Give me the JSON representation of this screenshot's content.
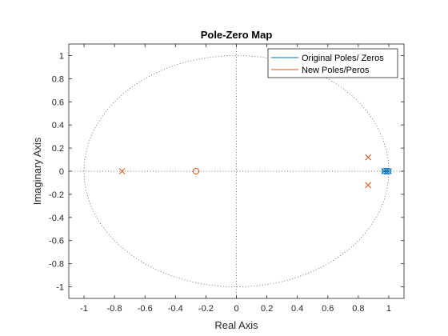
{
  "chart_data": {
    "type": "scatter",
    "title": "Pole-Zero Map",
    "xlabel": "Real Axis",
    "ylabel": "Imaginary Axis",
    "xlim": [
      -1.1,
      1.1
    ],
    "ylim": [
      -1.1,
      1.1
    ],
    "xticks": [
      -1,
      -0.8,
      -0.6,
      -0.4,
      -0.2,
      0,
      0.2,
      0.4,
      0.6,
      0.8,
      1
    ],
    "yticks": [
      -1,
      -0.8,
      -0.6,
      -0.4,
      -0.2,
      0,
      0.2,
      0.4,
      0.6,
      0.8,
      1
    ],
    "xtick_labels": [
      "-1",
      "-0.8",
      "-0.6",
      "-0.4",
      "-0.2",
      "0",
      "0.2",
      "0.4",
      "0.6",
      "0.8",
      "1"
    ],
    "ytick_labels": [
      "-1",
      "-0.8",
      "-0.6",
      "-0.4",
      "-0.2",
      "0",
      "0.2",
      "0.4",
      "0.6",
      "0.8",
      "1"
    ],
    "unit_circle": true,
    "grid": false,
    "legend_position": "top-right",
    "series": [
      {
        "name": "Original Poles/ Zeros",
        "color": "#0072BD",
        "poles": [
          [
            0.97,
            0
          ],
          [
            0.985,
            0
          ],
          [
            1.0,
            0
          ]
        ],
        "zeros": [
          [
            0.975,
            0
          ],
          [
            0.995,
            0
          ]
        ]
      },
      {
        "name": "New Poles/Peros",
        "color": "#D95319",
        "poles": [
          [
            -0.75,
            0
          ],
          [
            0.865,
            0.12
          ],
          [
            0.865,
            -0.12
          ]
        ],
        "zeros": [
          [
            -0.265,
            0
          ]
        ]
      }
    ]
  }
}
